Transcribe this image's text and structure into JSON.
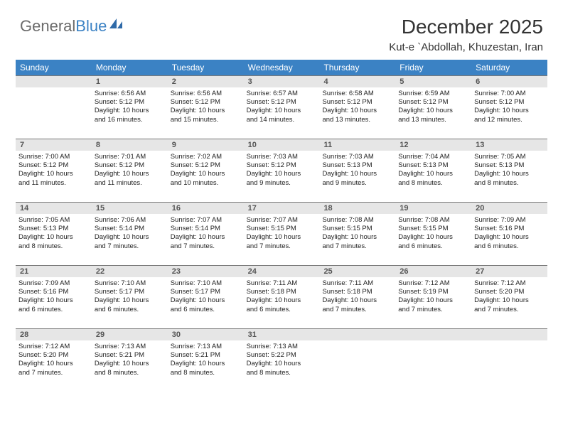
{
  "logo": {
    "text1": "General",
    "text2": "Blue"
  },
  "title": {
    "month": "December 2025",
    "location": "Kut-e `Abdollah, Khuzestan, Iran"
  },
  "header_bg": "#3b82c4",
  "daynum_bg": "#e6e6e6",
  "daynum_border": "#7a7a7a",
  "weekdays": [
    "Sunday",
    "Monday",
    "Tuesday",
    "Wednesday",
    "Thursday",
    "Friday",
    "Saturday"
  ],
  "weeks": [
    {
      "nums": [
        "",
        "1",
        "2",
        "3",
        "4",
        "5",
        "6"
      ],
      "cells": [
        null,
        {
          "sr": "Sunrise: 6:56 AM",
          "ss": "Sunset: 5:12 PM",
          "d1": "Daylight: 10 hours",
          "d2": "and 16 minutes."
        },
        {
          "sr": "Sunrise: 6:56 AM",
          "ss": "Sunset: 5:12 PM",
          "d1": "Daylight: 10 hours",
          "d2": "and 15 minutes."
        },
        {
          "sr": "Sunrise: 6:57 AM",
          "ss": "Sunset: 5:12 PM",
          "d1": "Daylight: 10 hours",
          "d2": "and 14 minutes."
        },
        {
          "sr": "Sunrise: 6:58 AM",
          "ss": "Sunset: 5:12 PM",
          "d1": "Daylight: 10 hours",
          "d2": "and 13 minutes."
        },
        {
          "sr": "Sunrise: 6:59 AM",
          "ss": "Sunset: 5:12 PM",
          "d1": "Daylight: 10 hours",
          "d2": "and 13 minutes."
        },
        {
          "sr": "Sunrise: 7:00 AM",
          "ss": "Sunset: 5:12 PM",
          "d1": "Daylight: 10 hours",
          "d2": "and 12 minutes."
        }
      ]
    },
    {
      "nums": [
        "7",
        "8",
        "9",
        "10",
        "11",
        "12",
        "13"
      ],
      "cells": [
        {
          "sr": "Sunrise: 7:00 AM",
          "ss": "Sunset: 5:12 PM",
          "d1": "Daylight: 10 hours",
          "d2": "and 11 minutes."
        },
        {
          "sr": "Sunrise: 7:01 AM",
          "ss": "Sunset: 5:12 PM",
          "d1": "Daylight: 10 hours",
          "d2": "and 11 minutes."
        },
        {
          "sr": "Sunrise: 7:02 AM",
          "ss": "Sunset: 5:12 PM",
          "d1": "Daylight: 10 hours",
          "d2": "and 10 minutes."
        },
        {
          "sr": "Sunrise: 7:03 AM",
          "ss": "Sunset: 5:12 PM",
          "d1": "Daylight: 10 hours",
          "d2": "and 9 minutes."
        },
        {
          "sr": "Sunrise: 7:03 AM",
          "ss": "Sunset: 5:13 PM",
          "d1": "Daylight: 10 hours",
          "d2": "and 9 minutes."
        },
        {
          "sr": "Sunrise: 7:04 AM",
          "ss": "Sunset: 5:13 PM",
          "d1": "Daylight: 10 hours",
          "d2": "and 8 minutes."
        },
        {
          "sr": "Sunrise: 7:05 AM",
          "ss": "Sunset: 5:13 PM",
          "d1": "Daylight: 10 hours",
          "d2": "and 8 minutes."
        }
      ]
    },
    {
      "nums": [
        "14",
        "15",
        "16",
        "17",
        "18",
        "19",
        "20"
      ],
      "cells": [
        {
          "sr": "Sunrise: 7:05 AM",
          "ss": "Sunset: 5:13 PM",
          "d1": "Daylight: 10 hours",
          "d2": "and 8 minutes."
        },
        {
          "sr": "Sunrise: 7:06 AM",
          "ss": "Sunset: 5:14 PM",
          "d1": "Daylight: 10 hours",
          "d2": "and 7 minutes."
        },
        {
          "sr": "Sunrise: 7:07 AM",
          "ss": "Sunset: 5:14 PM",
          "d1": "Daylight: 10 hours",
          "d2": "and 7 minutes."
        },
        {
          "sr": "Sunrise: 7:07 AM",
          "ss": "Sunset: 5:15 PM",
          "d1": "Daylight: 10 hours",
          "d2": "and 7 minutes."
        },
        {
          "sr": "Sunrise: 7:08 AM",
          "ss": "Sunset: 5:15 PM",
          "d1": "Daylight: 10 hours",
          "d2": "and 7 minutes."
        },
        {
          "sr": "Sunrise: 7:08 AM",
          "ss": "Sunset: 5:15 PM",
          "d1": "Daylight: 10 hours",
          "d2": "and 6 minutes."
        },
        {
          "sr": "Sunrise: 7:09 AM",
          "ss": "Sunset: 5:16 PM",
          "d1": "Daylight: 10 hours",
          "d2": "and 6 minutes."
        }
      ]
    },
    {
      "nums": [
        "21",
        "22",
        "23",
        "24",
        "25",
        "26",
        "27"
      ],
      "cells": [
        {
          "sr": "Sunrise: 7:09 AM",
          "ss": "Sunset: 5:16 PM",
          "d1": "Daylight: 10 hours",
          "d2": "and 6 minutes."
        },
        {
          "sr": "Sunrise: 7:10 AM",
          "ss": "Sunset: 5:17 PM",
          "d1": "Daylight: 10 hours",
          "d2": "and 6 minutes."
        },
        {
          "sr": "Sunrise: 7:10 AM",
          "ss": "Sunset: 5:17 PM",
          "d1": "Daylight: 10 hours",
          "d2": "and 6 minutes."
        },
        {
          "sr": "Sunrise: 7:11 AM",
          "ss": "Sunset: 5:18 PM",
          "d1": "Daylight: 10 hours",
          "d2": "and 6 minutes."
        },
        {
          "sr": "Sunrise: 7:11 AM",
          "ss": "Sunset: 5:18 PM",
          "d1": "Daylight: 10 hours",
          "d2": "and 7 minutes."
        },
        {
          "sr": "Sunrise: 7:12 AM",
          "ss": "Sunset: 5:19 PM",
          "d1": "Daylight: 10 hours",
          "d2": "and 7 minutes."
        },
        {
          "sr": "Sunrise: 7:12 AM",
          "ss": "Sunset: 5:20 PM",
          "d1": "Daylight: 10 hours",
          "d2": "and 7 minutes."
        }
      ]
    },
    {
      "nums": [
        "28",
        "29",
        "30",
        "31",
        "",
        "",
        ""
      ],
      "cells": [
        {
          "sr": "Sunrise: 7:12 AM",
          "ss": "Sunset: 5:20 PM",
          "d1": "Daylight: 10 hours",
          "d2": "and 7 minutes."
        },
        {
          "sr": "Sunrise: 7:13 AM",
          "ss": "Sunset: 5:21 PM",
          "d1": "Daylight: 10 hours",
          "d2": "and 8 minutes."
        },
        {
          "sr": "Sunrise: 7:13 AM",
          "ss": "Sunset: 5:21 PM",
          "d1": "Daylight: 10 hours",
          "d2": "and 8 minutes."
        },
        {
          "sr": "Sunrise: 7:13 AM",
          "ss": "Sunset: 5:22 PM",
          "d1": "Daylight: 10 hours",
          "d2": "and 8 minutes."
        },
        null,
        null,
        null
      ]
    }
  ]
}
